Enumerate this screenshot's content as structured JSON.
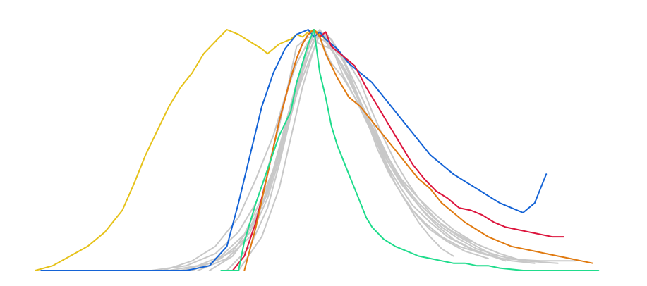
{
  "chart_data": {
    "type": "line",
    "title": "",
    "xlabel": "",
    "ylabel": "",
    "axes_visible": false,
    "grid": false,
    "legend": "none",
    "xlim": [
      0,
      1
    ],
    "ylim": [
      0,
      1
    ],
    "colors": {
      "background": "#ffffff",
      "gray": "#c8c8c8",
      "yellow": "#e6c21a",
      "blue": "#1463d6",
      "red": "#dc143c",
      "orange": "#e07a10",
      "green": "#1fdc8c"
    },
    "series": [
      {
        "color": "gray",
        "x": [
          0.23,
          0.28,
          0.32,
          0.36,
          0.39,
          0.42,
          0.44,
          0.46,
          0.47,
          0.48,
          0.49,
          0.5,
          0.52,
          0.54,
          0.56,
          0.58,
          0.6,
          0.62,
          0.64,
          0.66,
          0.68,
          0.7,
          0.72
        ],
        "y": [
          0.0,
          0.02,
          0.06,
          0.15,
          0.3,
          0.48,
          0.68,
          0.85,
          0.93,
          0.98,
          1.0,
          0.95,
          0.88,
          0.8,
          0.7,
          0.58,
          0.46,
          0.36,
          0.28,
          0.2,
          0.14,
          0.09,
          0.06
        ]
      },
      {
        "color": "gray",
        "x": [
          0.25,
          0.3,
          0.34,
          0.37,
          0.4,
          0.42,
          0.44,
          0.46,
          0.48,
          0.49,
          0.5,
          0.52,
          0.54,
          0.56,
          0.58,
          0.6,
          0.62,
          0.64,
          0.66,
          0.68,
          0.7,
          0.73,
          0.76,
          0.8
        ],
        "y": [
          0.0,
          0.03,
          0.08,
          0.18,
          0.33,
          0.5,
          0.66,
          0.8,
          0.92,
          0.98,
          0.97,
          0.9,
          0.86,
          0.78,
          0.66,
          0.55,
          0.45,
          0.37,
          0.3,
          0.24,
          0.19,
          0.14,
          0.1,
          0.05
        ]
      },
      {
        "color": "gray",
        "x": [
          0.2,
          0.26,
          0.31,
          0.35,
          0.38,
          0.4,
          0.42,
          0.44,
          0.45,
          0.47,
          0.49,
          0.51,
          0.53,
          0.55,
          0.57,
          0.59,
          0.61,
          0.63,
          0.65,
          0.67,
          0.7,
          0.73,
          0.77,
          0.82,
          0.86
        ],
        "y": [
          0.0,
          0.02,
          0.07,
          0.16,
          0.28,
          0.42,
          0.6,
          0.82,
          0.93,
          0.97,
          0.94,
          0.92,
          0.85,
          0.76,
          0.63,
          0.5,
          0.4,
          0.32,
          0.25,
          0.2,
          0.14,
          0.1,
          0.07,
          0.04,
          0.03
        ]
      },
      {
        "color": "gray",
        "x": [
          0.28,
          0.33,
          0.37,
          0.4,
          0.42,
          0.44,
          0.46,
          0.48,
          0.5,
          0.52,
          0.54,
          0.56,
          0.58,
          0.6,
          0.62,
          0.64,
          0.66,
          0.68,
          0.71,
          0.74,
          0.78
        ],
        "y": [
          0.0,
          0.05,
          0.14,
          0.3,
          0.46,
          0.64,
          0.82,
          0.96,
          0.99,
          0.92,
          0.82,
          0.7,
          0.58,
          0.46,
          0.36,
          0.28,
          0.22,
          0.17,
          0.12,
          0.08,
          0.05
        ]
      },
      {
        "color": "gray",
        "x": [
          0.3,
          0.34,
          0.37,
          0.4,
          0.42,
          0.44,
          0.46,
          0.48,
          0.49,
          0.51,
          0.53,
          0.55,
          0.57,
          0.59,
          0.61,
          0.63,
          0.65,
          0.67,
          0.69,
          0.72,
          0.76,
          0.81
        ],
        "y": [
          0.0,
          0.06,
          0.16,
          0.32,
          0.48,
          0.66,
          0.84,
          0.95,
          1.0,
          0.93,
          0.81,
          0.72,
          0.64,
          0.54,
          0.44,
          0.36,
          0.3,
          0.24,
          0.19,
          0.13,
          0.08,
          0.04
        ]
      },
      {
        "color": "gray",
        "x": [
          0.22,
          0.27,
          0.31,
          0.35,
          0.38,
          0.41,
          0.43,
          0.45,
          0.47,
          0.49,
          0.51,
          0.53,
          0.55,
          0.57,
          0.59,
          0.61,
          0.63,
          0.66,
          0.69,
          0.72,
          0.76,
          0.8,
          0.84
        ],
        "y": [
          0.0,
          0.04,
          0.1,
          0.22,
          0.38,
          0.56,
          0.72,
          0.86,
          0.95,
          0.99,
          0.96,
          0.88,
          0.78,
          0.68,
          0.56,
          0.46,
          0.38,
          0.3,
          0.23,
          0.17,
          0.11,
          0.07,
          0.04
        ]
      },
      {
        "color": "gray",
        "x": [
          0.33,
          0.37,
          0.4,
          0.42,
          0.44,
          0.46,
          0.47,
          0.48,
          0.49,
          0.5,
          0.51,
          0.53,
          0.55,
          0.57,
          0.59,
          0.61,
          0.63,
          0.65,
          0.68,
          0.71,
          0.75,
          0.8,
          0.87,
          0.93
        ],
        "y": [
          0.0,
          0.1,
          0.26,
          0.44,
          0.64,
          0.84,
          0.94,
          0.99,
          0.97,
          0.91,
          0.86,
          0.8,
          0.72,
          0.62,
          0.52,
          0.42,
          0.34,
          0.27,
          0.2,
          0.14,
          0.09,
          0.05,
          0.04,
          0.04
        ]
      },
      {
        "color": "gray",
        "x": [
          0.27,
          0.32,
          0.36,
          0.39,
          0.41,
          0.43,
          0.45,
          0.47,
          0.48,
          0.5,
          0.52,
          0.54,
          0.56,
          0.58,
          0.6,
          0.62,
          0.64,
          0.66,
          0.69,
          0.72,
          0.75
        ],
        "y": [
          0.0,
          0.05,
          0.13,
          0.27,
          0.42,
          0.6,
          0.78,
          0.92,
          0.98,
          0.95,
          0.88,
          0.8,
          0.7,
          0.6,
          0.5,
          0.41,
          0.34,
          0.28,
          0.21,
          0.16,
          0.12
        ]
      },
      {
        "color": "gray",
        "x": [
          0.35,
          0.39,
          0.42,
          0.44,
          0.46,
          0.48,
          0.49,
          0.5,
          0.52,
          0.54,
          0.56,
          0.58,
          0.6,
          0.62,
          0.64,
          0.66,
          0.68,
          0.7,
          0.73,
          0.76,
          0.8,
          0.84,
          0.9
        ],
        "y": [
          0.0,
          0.14,
          0.34,
          0.55,
          0.76,
          0.92,
          0.99,
          0.96,
          0.88,
          0.79,
          0.69,
          0.58,
          0.48,
          0.4,
          0.33,
          0.27,
          0.22,
          0.18,
          0.13,
          0.09,
          0.06,
          0.04,
          0.03
        ]
      },
      {
        "color": "yellow",
        "x": [
          0.0,
          0.03,
          0.06,
          0.09,
          0.12,
          0.15,
          0.17,
          0.19,
          0.21,
          0.23,
          0.25,
          0.27,
          0.29,
          0.31,
          0.33,
          0.35,
          0.37,
          0.39,
          0.4,
          0.42,
          0.44,
          0.45,
          0.46,
          0.47,
          0.48,
          0.49,
          0.5
        ],
        "y": [
          0.0,
          0.02,
          0.06,
          0.1,
          0.16,
          0.25,
          0.36,
          0.48,
          0.58,
          0.68,
          0.76,
          0.82,
          0.9,
          0.95,
          1.0,
          0.98,
          0.95,
          0.92,
          0.9,
          0.94,
          0.96,
          0.98,
          0.97,
          0.99,
          1.0,
          0.98,
          0.96
        ]
      },
      {
        "color": "blue",
        "x": [
          0.01,
          0.08,
          0.14,
          0.2,
          0.26,
          0.3,
          0.33,
          0.35,
          0.37,
          0.39,
          0.41,
          0.43,
          0.45,
          0.47,
          0.48,
          0.49,
          0.5,
          0.52,
          0.54,
          0.56,
          0.58,
          0.6,
          0.62,
          0.64,
          0.66,
          0.68,
          0.7,
          0.72,
          0.74,
          0.76,
          0.78,
          0.8,
          0.82,
          0.84,
          0.86,
          0.88
        ],
        "y": [
          0.0,
          0.0,
          0.0,
          0.0,
          0.0,
          0.02,
          0.1,
          0.28,
          0.48,
          0.68,
          0.82,
          0.92,
          0.98,
          1.0,
          0.97,
          0.99,
          0.96,
          0.92,
          0.86,
          0.82,
          0.78,
          0.72,
          0.66,
          0.6,
          0.54,
          0.48,
          0.44,
          0.4,
          0.37,
          0.34,
          0.31,
          0.28,
          0.26,
          0.24,
          0.28,
          0.4
        ]
      },
      {
        "color": "red",
        "x": [
          0.34,
          0.36,
          0.38,
          0.4,
          0.42,
          0.44,
          0.45,
          0.46,
          0.47,
          0.48,
          0.49,
          0.5,
          0.51,
          0.52,
          0.53,
          0.55,
          0.57,
          0.59,
          0.61,
          0.63,
          0.65,
          0.67,
          0.69,
          0.71,
          0.73,
          0.75,
          0.77,
          0.79,
          0.81,
          0.83,
          0.85,
          0.87,
          0.89,
          0.91
        ],
        "y": [
          0.0,
          0.06,
          0.2,
          0.4,
          0.62,
          0.8,
          0.88,
          0.94,
          0.98,
          1.0,
          0.97,
          0.99,
          0.93,
          0.91,
          0.89,
          0.85,
          0.76,
          0.68,
          0.6,
          0.52,
          0.44,
          0.38,
          0.33,
          0.3,
          0.26,
          0.25,
          0.23,
          0.2,
          0.18,
          0.17,
          0.16,
          0.15,
          0.14,
          0.14
        ]
      },
      {
        "color": "orange",
        "x": [
          0.36,
          0.38,
          0.4,
          0.42,
          0.44,
          0.45,
          0.46,
          0.47,
          0.48,
          0.49,
          0.5,
          0.52,
          0.54,
          0.56,
          0.58,
          0.6,
          0.62,
          0.64,
          0.66,
          0.68,
          0.7,
          0.72,
          0.74,
          0.76,
          0.78,
          0.8,
          0.82,
          0.84,
          0.86,
          0.88,
          0.9,
          0.92,
          0.94,
          0.96
        ],
        "y": [
          0.0,
          0.18,
          0.4,
          0.62,
          0.8,
          0.88,
          0.94,
          0.98,
          1.0,
          0.97,
          0.9,
          0.8,
          0.72,
          0.68,
          0.62,
          0.56,
          0.5,
          0.44,
          0.38,
          0.34,
          0.28,
          0.24,
          0.2,
          0.17,
          0.14,
          0.12,
          0.1,
          0.09,
          0.08,
          0.07,
          0.06,
          0.05,
          0.04,
          0.03
        ]
      },
      {
        "color": "green",
        "x": [
          0.32,
          0.35,
          0.36,
          0.38,
          0.4,
          0.42,
          0.44,
          0.45,
          0.46,
          0.47,
          0.48,
          0.49,
          0.5,
          0.51,
          0.52,
          0.53,
          0.54,
          0.55,
          0.56,
          0.57,
          0.58,
          0.6,
          0.62,
          0.64,
          0.66,
          0.68,
          0.7,
          0.72,
          0.74,
          0.76,
          0.78,
          0.8,
          0.84,
          0.88,
          0.92,
          0.97
        ],
        "y": [
          0.0,
          0.0,
          0.12,
          0.28,
          0.42,
          0.56,
          0.66,
          0.78,
          0.86,
          0.94,
          1.0,
          0.82,
          0.72,
          0.6,
          0.52,
          0.46,
          0.4,
          0.34,
          0.28,
          0.22,
          0.18,
          0.13,
          0.1,
          0.08,
          0.06,
          0.05,
          0.04,
          0.03,
          0.03,
          0.02,
          0.02,
          0.01,
          0.0,
          0.0,
          0.0,
          0.0
        ]
      }
    ]
  }
}
